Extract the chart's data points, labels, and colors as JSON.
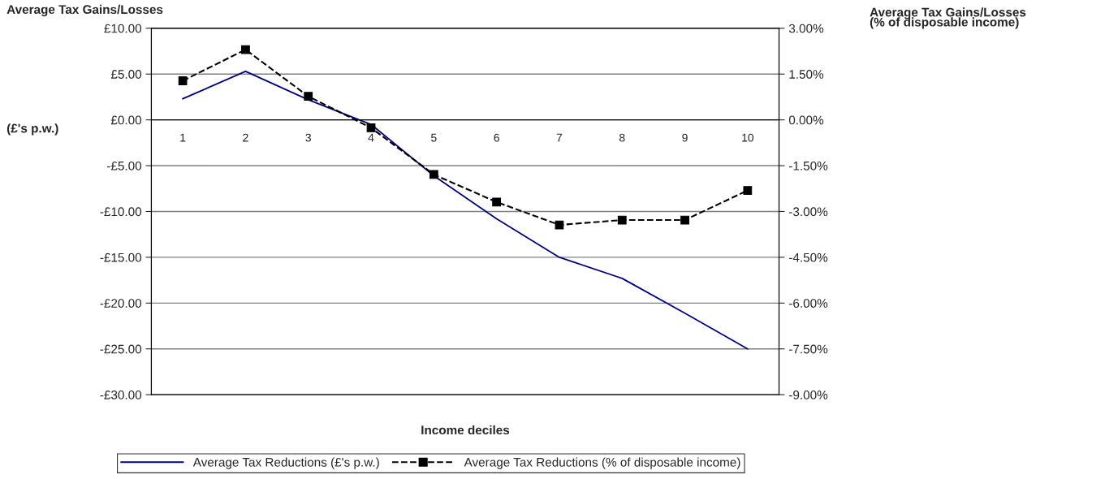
{
  "chart_data": {
    "type": "line",
    "ylabel": "Average Tax Gains/Losses",
    "y2label": "Average Tax Gains/Losses\n(% of disposable income)",
    "xlabel": "Income deciles",
    "annotations": [
      "(£'s p.w.)"
    ],
    "categories": [
      "1",
      "2",
      "3",
      "4",
      "5",
      "6",
      "7",
      "8",
      "9",
      "10"
    ],
    "series": [
      {
        "name": "Average Tax Reductions (£'s p.w.)",
        "color": "#000080",
        "values": [
          2.3,
          5.3,
          2.2,
          -0.5,
          -6.1,
          -10.8,
          -15.0,
          -17.3,
          -21.1,
          -25.0
        ],
        "marker": "none",
        "line_style": "solid"
      },
      {
        "name": "Average Tax Reductions (% of disposable income)",
        "color": "#000000",
        "axis": "y2",
        "values": [
          1.28,
          2.3,
          0.77,
          -0.26,
          -1.79,
          -2.69,
          -3.44,
          -3.28,
          -3.28,
          -2.31
        ],
        "marker": "square",
        "line_style": "dashed"
      }
    ],
    "ylim": [
      -30,
      10
    ],
    "yticks": [
      {
        "value": -30,
        "label": "-£30.00"
      },
      {
        "value": -25,
        "label": "-£25.00"
      },
      {
        "value": -20,
        "label": "-£20.00"
      },
      {
        "value": -15,
        "label": "-£15.00"
      },
      {
        "value": -10,
        "label": "-£10.00"
      },
      {
        "value": -5,
        "label": "-£5.00"
      },
      {
        "value": 0,
        "label": "£0.00"
      },
      {
        "value": 5,
        "label": "£5.00"
      },
      {
        "value": 10,
        "label": "£10.00"
      }
    ],
    "y2lim": [
      -9,
      3
    ],
    "y2ticks": [
      {
        "value": -9,
        "label": "-9.00%"
      },
      {
        "value": -7.5,
        "label": "-7.50%"
      },
      {
        "value": -6,
        "label": "-6.00%"
      },
      {
        "value": -4.5,
        "label": "-4.50%"
      },
      {
        "value": -3,
        "label": "-3.00%"
      },
      {
        "value": -1.5,
        "label": "-1.50%"
      },
      {
        "value": 0,
        "label": "0.00%"
      },
      {
        "value": 1.5,
        "label": "1.50%"
      },
      {
        "value": 3,
        "label": "3.00%"
      }
    ],
    "grid": "y",
    "legend": "bottom"
  }
}
